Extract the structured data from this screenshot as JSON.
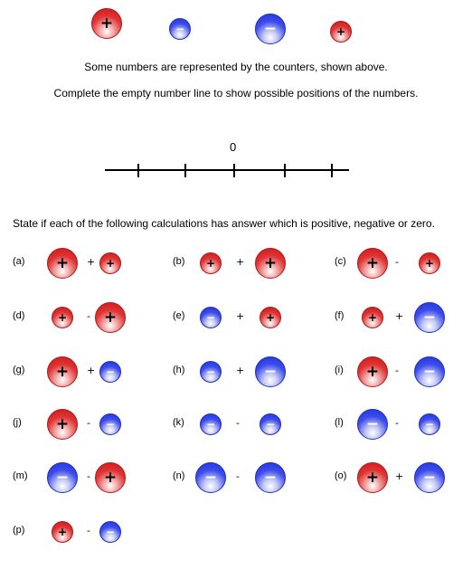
{
  "instructions": {
    "line1": "Some numbers are represented by the counters, shown above.",
    "line2": "Complete the empty number line to show possible positions of the numbers."
  },
  "number_line": {
    "zero_label": "0",
    "tick_count": 5
  },
  "question": "State if each of the following calculations has answer which is positive, negative or zero.",
  "counter_legend": [
    {
      "sign": "+",
      "color": "red",
      "size": "large"
    },
    {
      "sign": "−",
      "color": "blue",
      "size": "small"
    },
    {
      "sign": "−",
      "color": "blue",
      "size": "large"
    },
    {
      "sign": "+",
      "color": "red",
      "size": "small"
    }
  ],
  "colors": {
    "positive": "#d9232a",
    "negative": "#2638e6"
  },
  "problems": [
    {
      "label": "(a)",
      "op": "+",
      "left": {
        "sign": "+",
        "color": "red",
        "size": "large"
      },
      "right": {
        "sign": "+",
        "color": "red",
        "size": "small"
      }
    },
    {
      "label": "(b)",
      "op": "+",
      "left": {
        "sign": "+",
        "color": "red",
        "size": "small"
      },
      "right": {
        "sign": "+",
        "color": "red",
        "size": "large"
      }
    },
    {
      "label": "(c)",
      "op": "-",
      "left": {
        "sign": "+",
        "color": "red",
        "size": "large"
      },
      "right": {
        "sign": "+",
        "color": "red",
        "size": "small"
      }
    },
    {
      "label": "(d)",
      "op": "-",
      "left": {
        "sign": "+",
        "color": "red",
        "size": "small"
      },
      "right": {
        "sign": "+",
        "color": "red",
        "size": "large"
      }
    },
    {
      "label": "(e)",
      "op": "+",
      "left": {
        "sign": "−",
        "color": "blue",
        "size": "small"
      },
      "right": {
        "sign": "+",
        "color": "red",
        "size": "small"
      }
    },
    {
      "label": "(f)",
      "op": "+",
      "left": {
        "sign": "+",
        "color": "red",
        "size": "small"
      },
      "right": {
        "sign": "−",
        "color": "blue",
        "size": "large"
      }
    },
    {
      "label": "(g)",
      "op": "+",
      "left": {
        "sign": "+",
        "color": "red",
        "size": "large"
      },
      "right": {
        "sign": "−",
        "color": "blue",
        "size": "small"
      }
    },
    {
      "label": "(h)",
      "op": "+",
      "left": {
        "sign": "−",
        "color": "blue",
        "size": "small"
      },
      "right": {
        "sign": "−",
        "color": "blue",
        "size": "large"
      }
    },
    {
      "label": "(i)",
      "op": "-",
      "left": {
        "sign": "+",
        "color": "red",
        "size": "large"
      },
      "right": {
        "sign": "−",
        "color": "blue",
        "size": "large"
      }
    },
    {
      "label": "(j)",
      "op": "-",
      "left": {
        "sign": "+",
        "color": "red",
        "size": "large"
      },
      "right": {
        "sign": "−",
        "color": "blue",
        "size": "small"
      }
    },
    {
      "label": "(k)",
      "op": "-",
      "left": {
        "sign": "−",
        "color": "blue",
        "size": "small"
      },
      "right": {
        "sign": "−",
        "color": "blue",
        "size": "small"
      }
    },
    {
      "label": "(l)",
      "op": "-",
      "left": {
        "sign": "−",
        "color": "blue",
        "size": "large"
      },
      "right": {
        "sign": "−",
        "color": "blue",
        "size": "small"
      }
    },
    {
      "label": "(m)",
      "op": "-",
      "left": {
        "sign": "−",
        "color": "blue",
        "size": "large"
      },
      "right": {
        "sign": "+",
        "color": "red",
        "size": "large"
      }
    },
    {
      "label": "(n)",
      "op": "-",
      "left": {
        "sign": "−",
        "color": "blue",
        "size": "large"
      },
      "right": {
        "sign": "−",
        "color": "blue",
        "size": "large"
      }
    },
    {
      "label": "(o)",
      "op": "+",
      "left": {
        "sign": "+",
        "color": "red",
        "size": "large"
      },
      "right": {
        "sign": "−",
        "color": "blue",
        "size": "large"
      }
    },
    {
      "label": "(p)",
      "op": "-",
      "left": {
        "sign": "+",
        "color": "red",
        "size": "small"
      },
      "right": {
        "sign": "−",
        "color": "blue",
        "size": "small"
      }
    }
  ]
}
